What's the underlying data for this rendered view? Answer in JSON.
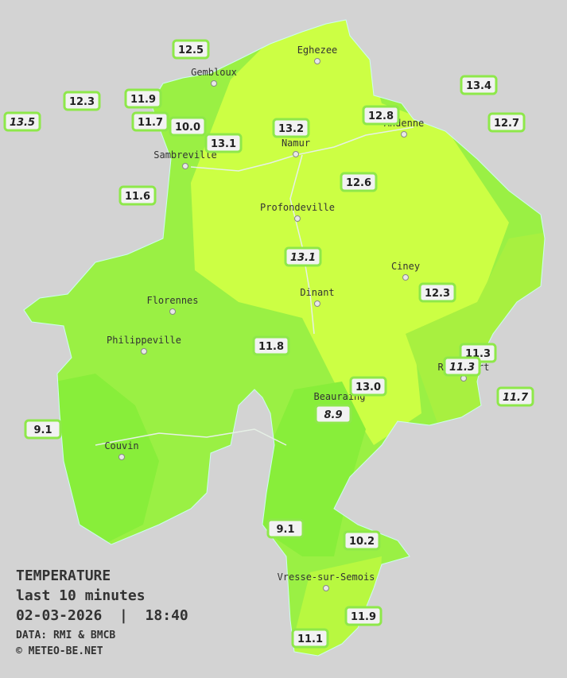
{
  "legend": {
    "title": "TEMPERATURE",
    "subtitle": "last 10 minutes",
    "datetime": "02-03-2026  |  18:40",
    "source": "DATA: RMI & BMCB",
    "copyright": "© METEO-BE.NET"
  },
  "cities": [
    "Eghezee",
    "Gembloux",
    "Andenne",
    "Namur",
    "Sambreville",
    "Profondeville",
    "Ciney",
    "Dinant",
    "Florennes",
    "Philippeville",
    "Beauraing",
    "Rochefort",
    "Couvin",
    "Vresse-sur-Semois"
  ],
  "stations": [
    {
      "label": "12.5"
    },
    {
      "label": "12.3"
    },
    {
      "label": "13.5",
      "italic": true
    },
    {
      "label": "11.9"
    },
    {
      "label": "11.7"
    },
    {
      "label": "10.0"
    },
    {
      "label": "13.1"
    },
    {
      "label": "13.2"
    },
    {
      "label": "12.8"
    },
    {
      "label": "13.4"
    },
    {
      "label": "12.7"
    },
    {
      "label": "11.6"
    },
    {
      "label": "12.6"
    },
    {
      "label": "13.1",
      "italic": true
    },
    {
      "label": "12.3"
    },
    {
      "label": "11.8"
    },
    {
      "label": "11.3"
    },
    {
      "label": "11.3",
      "italic": true
    },
    {
      "label": "11.7",
      "italic": true
    },
    {
      "label": "13.0"
    },
    {
      "label": "8.9",
      "italic": true
    },
    {
      "label": "9.1"
    },
    {
      "label": "9.1"
    },
    {
      "label": "10.2"
    },
    {
      "label": "11.9"
    },
    {
      "label": "11.1"
    }
  ]
}
